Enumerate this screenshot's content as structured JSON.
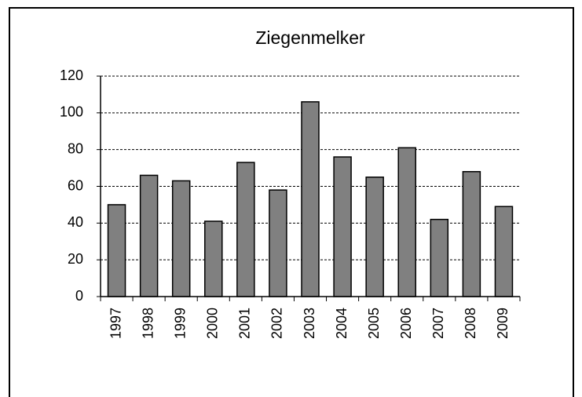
{
  "chart_data": {
    "type": "bar",
    "title": "Ziegenmelker",
    "categories": [
      "1997",
      "1998",
      "1999",
      "2000",
      "2001",
      "2002",
      "2003",
      "2004",
      "2005",
      "2006",
      "2007",
      "2008",
      "2009"
    ],
    "values": [
      50,
      66,
      63,
      41,
      73,
      58,
      106,
      76,
      65,
      81,
      42,
      68,
      49
    ],
    "color": "#808080",
    "ylim": [
      0,
      120
    ],
    "yticks": [
      0,
      20,
      40,
      60,
      80,
      100,
      120
    ],
    "grid": true
  }
}
